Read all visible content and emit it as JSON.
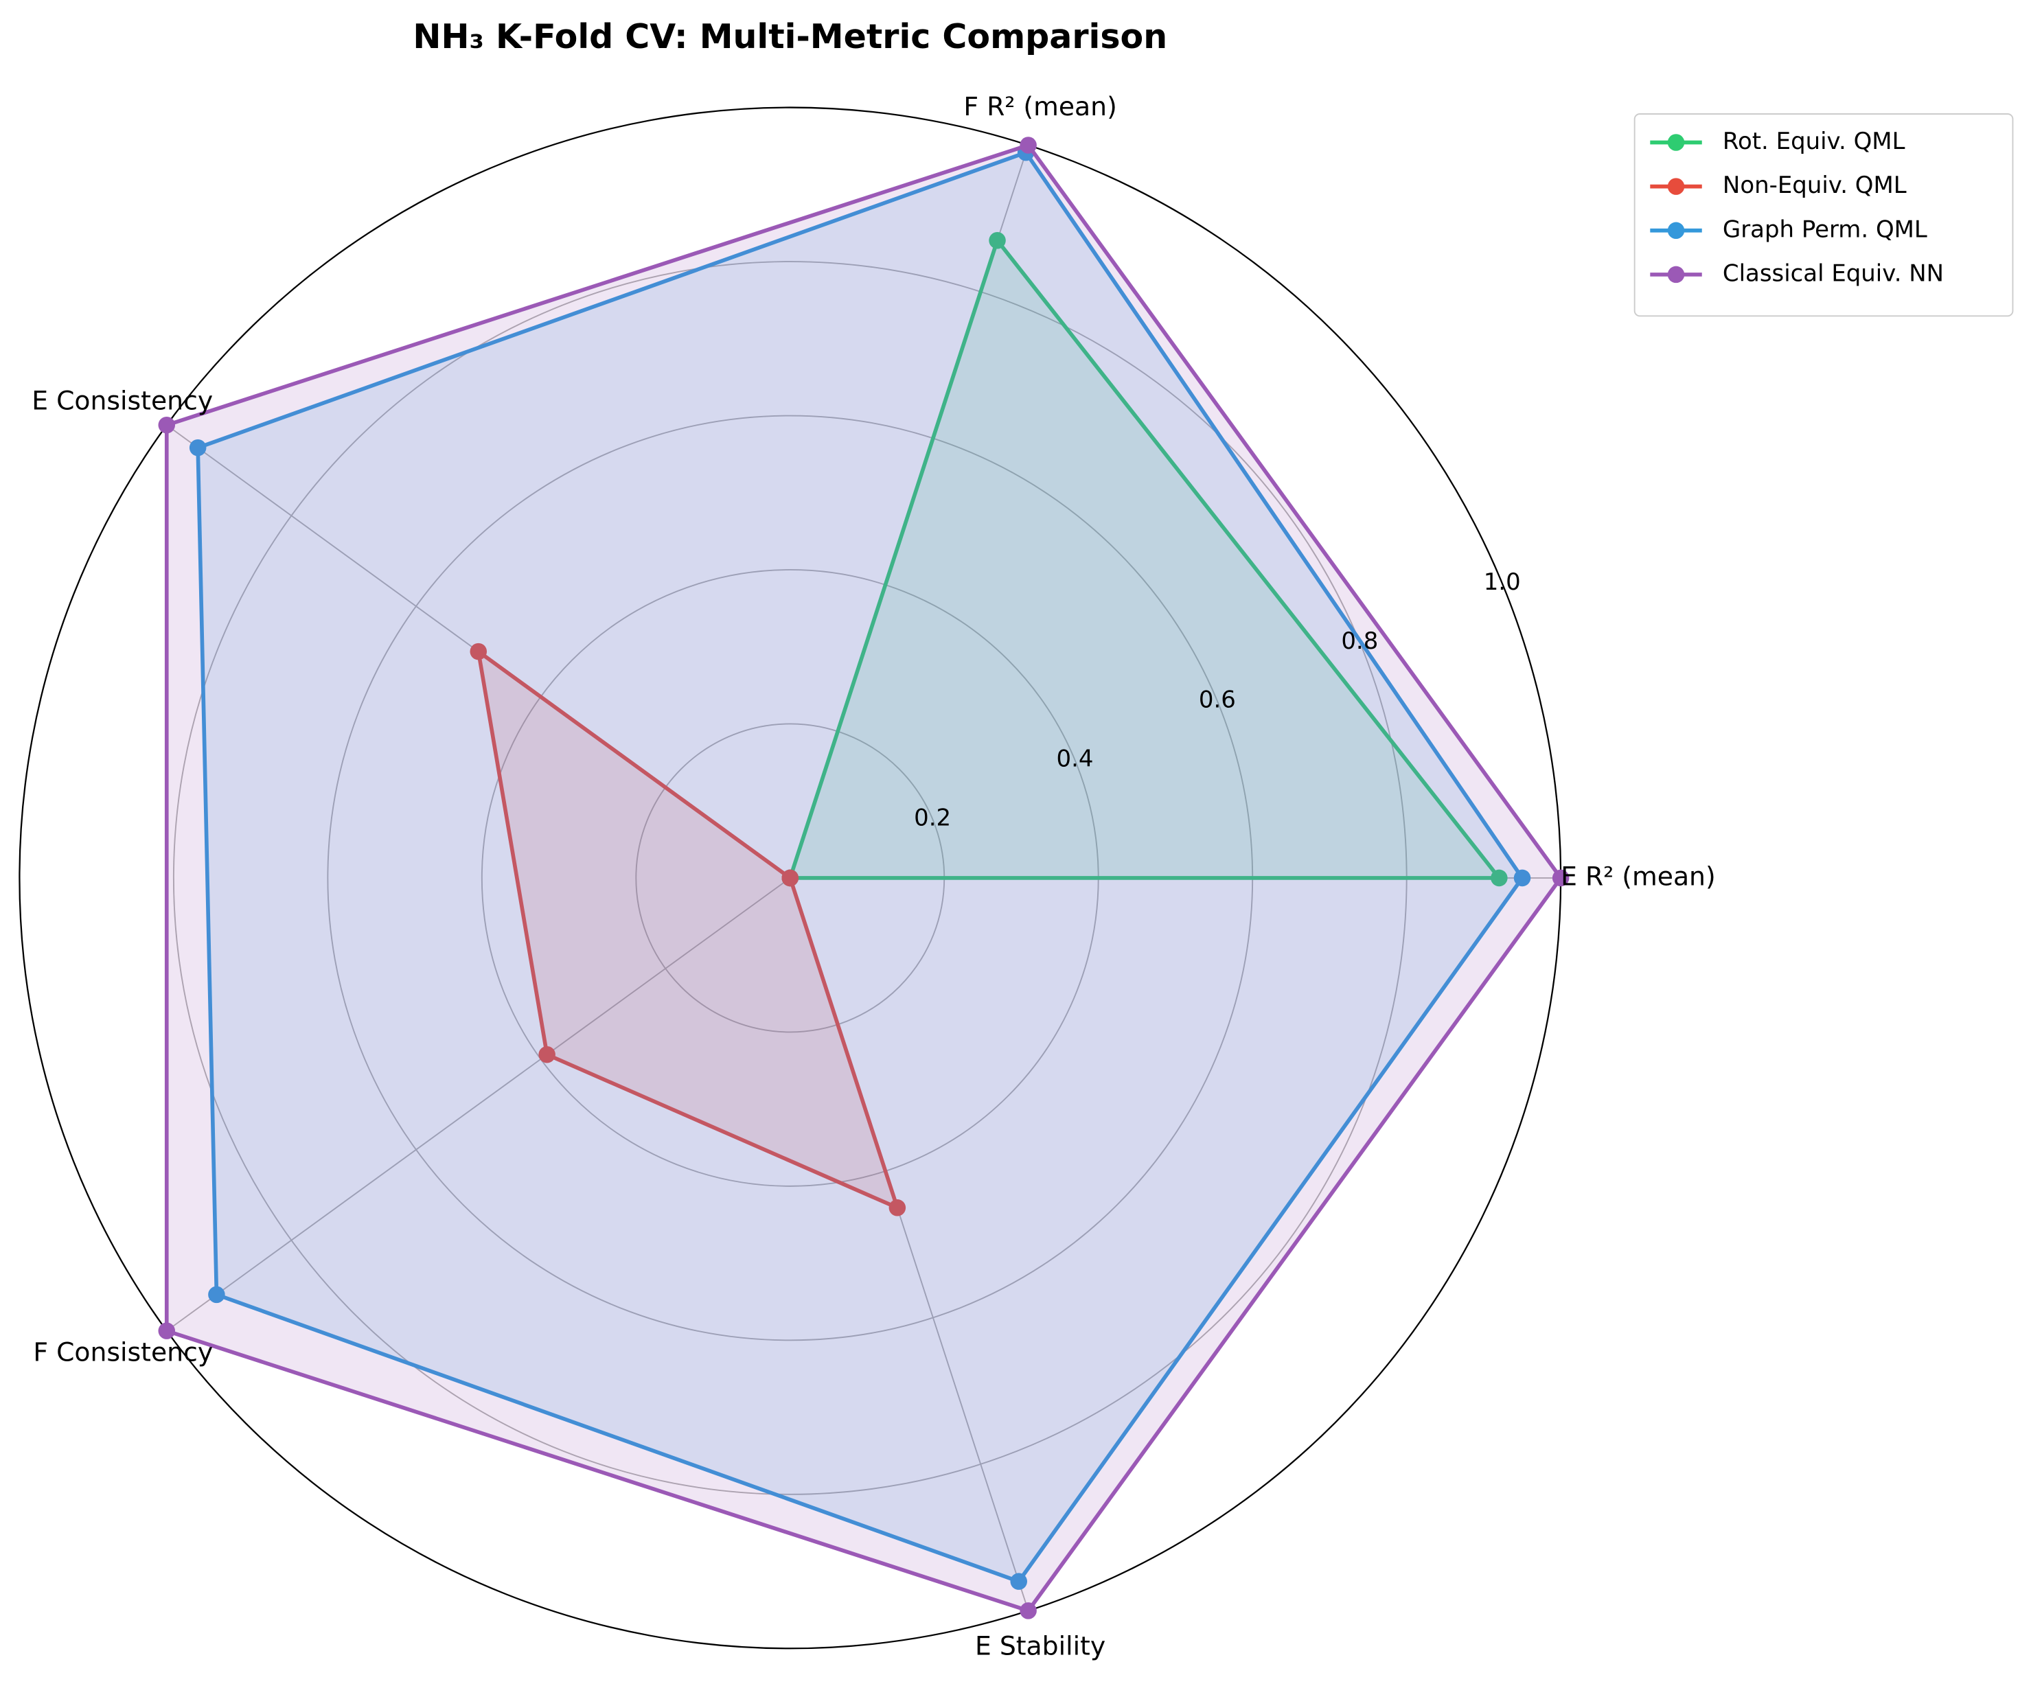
{
  "chart_data": {
    "type": "radar",
    "title": "NH₃ K-Fold CV: Multi-Metric Comparison",
    "categories": [
      "E R² (mean)",
      "F R² (mean)",
      "E Consistency",
      "F Consistency",
      "E Stability"
    ],
    "ylim": [
      0,
      1
    ],
    "yticks": [
      0.2,
      0.4,
      0.6,
      0.8,
      {
        "value": 1,
        "label": "1.0"
      }
    ],
    "grid": true,
    "legend": "upper right outside",
    "series": [
      {
        "name": "Rot. Equiv. QML",
        "color": "#2ecc71",
        "values": [
          0.92,
          0.87,
          0,
          0,
          0
        ]
      },
      {
        "name": "Non-Equiv. QML",
        "color": "#e74c3c",
        "values": [
          0,
          0,
          0.5,
          0.39,
          0.45
        ]
      },
      {
        "name": "Graph Perm. QML",
        "color": "#3498db",
        "values": [
          0.95,
          0.99,
          0.95,
          0.92,
          0.96
        ]
      },
      {
        "name": "Classical Equiv. NN",
        "color": "#9b59b6",
        "values": [
          1,
          1,
          1,
          1,
          1
        ]
      }
    ]
  }
}
